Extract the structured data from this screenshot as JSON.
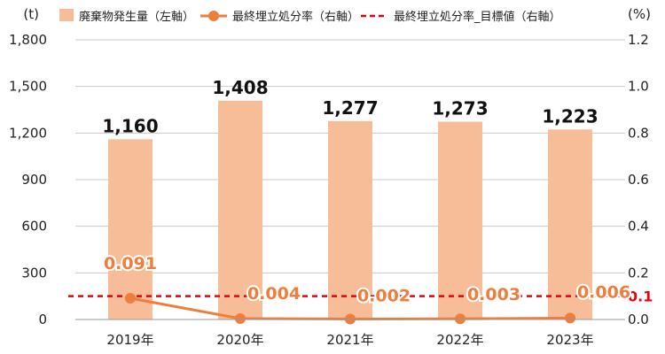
{
  "chart_data": {
    "type": "bar",
    "categories": [
      "2019年",
      "2020年",
      "2021年",
      "2022年",
      "2023年"
    ],
    "series": [
      {
        "name": "廃棄物発生量（左軸）",
        "type": "bar",
        "axis": "left",
        "color": "#f7bd98",
        "values": [
          1160,
          1408,
          1277,
          1273,
          1223
        ],
        "labels": [
          "1,160",
          "1,408",
          "1,277",
          "1,273",
          "1,223"
        ]
      },
      {
        "name": "最終埋立処分率（右軸）",
        "type": "line",
        "axis": "right",
        "color": "#ef7d3c",
        "values": [
          0.091,
          0.004,
          0.002,
          0.003,
          0.006
        ],
        "labels": [
          "0.091",
          "0.004",
          "0.002",
          "0.003",
          "0.006"
        ]
      },
      {
        "name": "最終埋立処分率_目標値（右軸）",
        "type": "line",
        "style": "dashed",
        "axis": "right",
        "color": "#e60012",
        "value": 0.1,
        "label": "0.1"
      }
    ],
    "left_axis": {
      "unit": "(t)",
      "ylim": [
        0,
        1800
      ],
      "ticks": [
        0,
        300,
        600,
        900,
        1200,
        1500,
        1800
      ],
      "tick_labels": [
        "0",
        "300",
        "600",
        "900",
        "1,200",
        "1,500",
        "1,800"
      ]
    },
    "right_axis": {
      "unit": "(%)",
      "ylim": [
        0,
        1.2
      ],
      "ticks": [
        0,
        0.2,
        0.4,
        0.6,
        0.8,
        1.0,
        1.2
      ],
      "tick_labels": [
        "0.0",
        "0.2",
        "0.4",
        "0.6",
        "0.8",
        "1.0",
        "1.2"
      ]
    },
    "grid": true,
    "legend_position": "top"
  }
}
